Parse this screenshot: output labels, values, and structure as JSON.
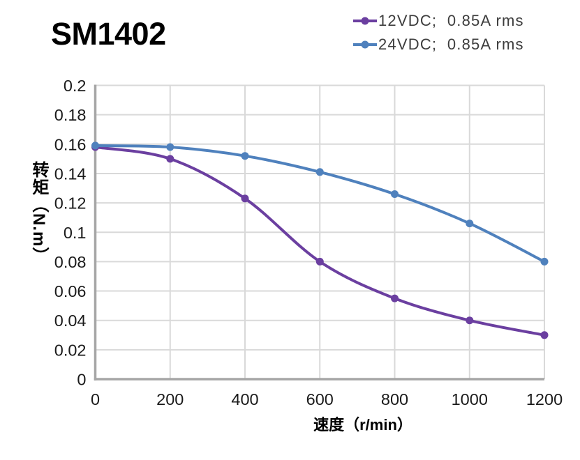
{
  "title": "SM1402",
  "chart_data": {
    "type": "line",
    "title": "SM1402",
    "xlabel": "速度（r/min）",
    "ylabel": "转矩（N.m）",
    "xlim": [
      0,
      1200
    ],
    "ylim": [
      0,
      0.2
    ],
    "grid": true,
    "legend_position": "top-right",
    "x_ticks": [
      0,
      200,
      400,
      600,
      800,
      1000,
      1200
    ],
    "x_tick_labels": [
      "0",
      "200",
      "400",
      "600",
      "800",
      "1000",
      "1200"
    ],
    "y_ticks": [
      0.2,
      0.18,
      0.16,
      0.14,
      0.12,
      0.1,
      0.08,
      0.06,
      0.04,
      0.02,
      0
    ],
    "y_tick_labels": [
      "0.2",
      "0.18",
      "0.16",
      "0.14",
      "0.12",
      "0.1",
      "0.08",
      "0.06",
      "0.04",
      "0.02",
      "0"
    ],
    "series": [
      {
        "id": "12vdc",
        "name": "12VDC;  0.85A rms",
        "color": "#6B3FA0",
        "x": [
          0,
          200,
          400,
          600,
          800,
          1000,
          1200
        ],
        "y": [
          0.158,
          0.15,
          0.123,
          0.08,
          0.055,
          0.04,
          0.03
        ]
      },
      {
        "id": "24vdc",
        "name": "24VDC;  0.85A rms",
        "color": "#4F81BD",
        "x": [
          0,
          200,
          400,
          600,
          800,
          1000,
          1200
        ],
        "y": [
          0.159,
          0.158,
          0.152,
          0.141,
          0.126,
          0.106,
          0.08
        ]
      }
    ],
    "colors": {
      "grid": "#D9D9D9",
      "axis": "#A6A6A6",
      "tick_text": "#1A1A1A",
      "legend_text": "#3D3D3D",
      "title_text": "#000000"
    }
  }
}
